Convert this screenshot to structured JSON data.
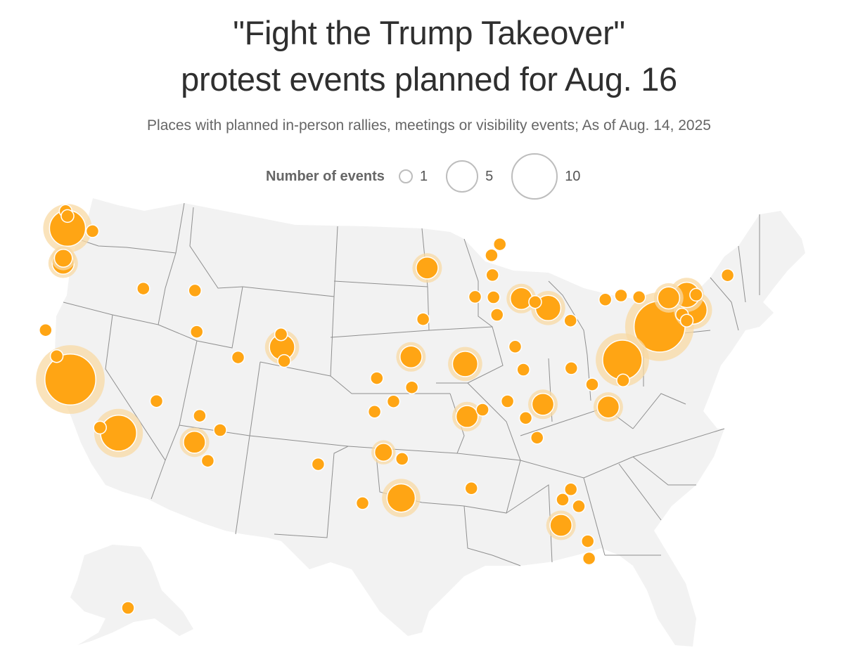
{
  "title_line1": "\"Fight the Trump Takeover\"",
  "title_line2": "protest events planned for Aug. 16",
  "subtitle": "Places with planned in-person rallies, meetings or visibility events; As of Aug. 14, 2025",
  "legend": {
    "title": "Number of events",
    "items": [
      {
        "label": "1",
        "value": 1
      },
      {
        "label": "5",
        "value": 5
      },
      {
        "label": "10",
        "value": 10
      }
    ]
  },
  "colors": {
    "land": "#f2f2f2",
    "borders": "#8f8f8f",
    "marker": "#ffa514",
    "halo": "#f8d9a4",
    "marker_outline": "#ffffff"
  },
  "regions": [
    "contiguous-us",
    "alaska"
  ],
  "points": [
    {
      "city": "Seattle",
      "lon": -122.33,
      "lat": 47.61,
      "events": 10
    },
    {
      "city": "Bellingham",
      "lon": -122.48,
      "lat": 48.75,
      "events": 1
    },
    {
      "city": "Mount Vernon",
      "lon": -122.33,
      "lat": 48.42,
      "events": 1
    },
    {
      "city": "Wenatchee",
      "lon": -120.31,
      "lat": 47.42,
      "events": 1
    },
    {
      "city": "Vancouver WA",
      "lon": -122.66,
      "lat": 45.63,
      "events": 2
    },
    {
      "city": "Portland",
      "lon": -122.68,
      "lat": 45.3,
      "events": 3
    },
    {
      "city": "Arcata",
      "lon": -124.1,
      "lat": 40.87,
      "events": 1
    },
    {
      "city": "Ukiah",
      "lon": -123.2,
      "lat": 39.15,
      "events": 1
    },
    {
      "city": "San Francisco Bay Area",
      "lon": -122.1,
      "lat": 37.6,
      "events": 20
    },
    {
      "city": "Santa Barbara",
      "lon": -119.7,
      "lat": 34.42,
      "events": 1
    },
    {
      "city": "Los Angeles",
      "lon": -118.2,
      "lat": 34.05,
      "events": 10
    },
    {
      "city": "Las Vegas",
      "lon": -115.14,
      "lat": 36.17,
      "events": 1
    },
    {
      "city": "Boise",
      "lon": -116.2,
      "lat": 43.62,
      "events": 1
    },
    {
      "city": "Idaho Falls",
      "lon": -112.03,
      "lat": 43.49,
      "events": 1
    },
    {
      "city": "Salt Lake City",
      "lon": -111.89,
      "lat": 40.76,
      "events": 1
    },
    {
      "city": "Fort Collins",
      "lon": -105.08,
      "lat": 40.59,
      "events": 1
    },
    {
      "city": "Denver",
      "lon": -104.99,
      "lat": 39.74,
      "events": 4
    },
    {
      "city": "Colorado Springs",
      "lon": -104.82,
      "lat": 38.83,
      "events": 1
    },
    {
      "city": "Grand Junction",
      "lon": -108.55,
      "lat": 39.06,
      "events": 1
    },
    {
      "city": "Flagstaff",
      "lon": -111.65,
      "lat": 35.2,
      "events": 1
    },
    {
      "city": "Phoenix",
      "lon": -112.07,
      "lat": 33.45,
      "events": 3
    },
    {
      "city": "Show Low",
      "lon": -110.0,
      "lat": 34.25,
      "events": 1
    },
    {
      "city": "Tucson",
      "lon": -111.0,
      "lat": 32.22,
      "events": 1
    },
    {
      "city": "Wichita",
      "lon": -97.34,
      "lat": 37.69,
      "events": 1
    },
    {
      "city": "Tulsa",
      "lon": -95.99,
      "lat": 36.15,
      "events": 1
    },
    {
      "city": "Oklahoma City",
      "lon": -97.52,
      "lat": 35.47,
      "events": 1
    },
    {
      "city": "Joplin",
      "lon": -94.51,
      "lat": 37.08,
      "events": 1
    },
    {
      "city": "Dallas",
      "lon": -96.8,
      "lat": 32.78,
      "events": 2
    },
    {
      "city": "Tyler",
      "lon": -95.3,
      "lat": 32.35,
      "events": 1
    },
    {
      "city": "Midland",
      "lon": -102.08,
      "lat": 31.99,
      "events": 1
    },
    {
      "city": "San Antonio",
      "lon": -98.49,
      "lat": 29.42,
      "events": 1
    },
    {
      "city": "Houston",
      "lon": -95.37,
      "lat": 29.76,
      "events": 5
    },
    {
      "city": "Minneapolis",
      "lon": -93.27,
      "lat": 44.98,
      "events": 3
    },
    {
      "city": "Des Moines",
      "lon": -93.6,
      "lat": 41.59,
      "events": 1
    },
    {
      "city": "Kansas City",
      "lon": -94.58,
      "lat": 39.1,
      "events": 3
    },
    {
      "city": "St. Louis",
      "lon": -90.2,
      "lat": 38.63,
      "events": 4
    },
    {
      "city": "Memphis",
      "lon": -90.05,
      "lat": 35.15,
      "events": 3
    },
    {
      "city": "Jackson TN",
      "lon": -88.8,
      "lat": 35.6,
      "events": 1
    },
    {
      "city": "New Orleans",
      "lon": -89.7,
      "lat": 30.4,
      "events": 1
    },
    {
      "city": "Marquette",
      "lon": -87.4,
      "lat": 46.55,
      "events": 1
    },
    {
      "city": "Iron Mountain",
      "lon": -88.07,
      "lat": 45.82,
      "events": 1
    },
    {
      "city": "Green Bay",
      "lon": -88.0,
      "lat": 44.51,
      "events": 1
    },
    {
      "city": "Milwaukee",
      "lon": -87.91,
      "lat": 43.04,
      "events": 1
    },
    {
      "city": "Madison",
      "lon": -89.4,
      "lat": 43.07,
      "events": 1
    },
    {
      "city": "Chicago",
      "lon": -87.63,
      "lat": 41.88,
      "events": 1
    },
    {
      "city": "Grand Rapids",
      "lon": -85.67,
      "lat": 42.96,
      "events": 3
    },
    {
      "city": "Lansing",
      "lon": -84.55,
      "lat": 42.73,
      "events": 1
    },
    {
      "city": "Detroit",
      "lon": -83.5,
      "lat": 42.33,
      "events": 4
    },
    {
      "city": "Indianapolis",
      "lon": -86.16,
      "lat": 39.77,
      "events": 1
    },
    {
      "city": "Cleveland",
      "lon": -81.69,
      "lat": 41.5,
      "events": 1
    },
    {
      "city": "Louisville",
      "lon": -85.5,
      "lat": 38.25,
      "events": 1
    },
    {
      "city": "Nashville",
      "lon": -86.78,
      "lat": 36.16,
      "events": 1
    },
    {
      "city": "Knoxville",
      "lon": -83.92,
      "lat": 35.96,
      "events": 3
    },
    {
      "city": "Charleston WV",
      "lon": -81.63,
      "lat": 38.35,
      "events": 1
    },
    {
      "city": "Roanoke",
      "lon": -79.94,
      "lat": 37.27,
      "events": 1
    },
    {
      "city": "Raleigh",
      "lon": -78.64,
      "lat": 35.78,
      "events": 3
    },
    {
      "city": "Chattanooga",
      "lon": -85.31,
      "lat": 35.05,
      "events": 1
    },
    {
      "city": "Atlanta",
      "lon": -84.39,
      "lat": 33.75,
      "events": 1
    },
    {
      "city": "Jacksonville",
      "lon": -81.66,
      "lat": 30.33,
      "events": 1
    },
    {
      "city": "Gainesville",
      "lon": -82.33,
      "lat": 29.65,
      "events": 1
    },
    {
      "city": "Daytona Beach",
      "lon": -81.02,
      "lat": 29.21,
      "events": 1
    },
    {
      "city": "Tampa",
      "lon": -82.46,
      "lat": 27.95,
      "events": 3
    },
    {
      "city": "West Palm Beach",
      "lon": -80.3,
      "lat": 26.9,
      "events": 1
    },
    {
      "city": "Miami",
      "lon": -80.19,
      "lat": 25.76,
      "events": 1
    },
    {
      "city": "Buffalo",
      "lon": -78.88,
      "lat": 42.89,
      "events": 1
    },
    {
      "city": "Rochester",
      "lon": -77.61,
      "lat": 43.16,
      "events": 1
    },
    {
      "city": "Syracuse",
      "lon": -76.15,
      "lat": 43.05,
      "events": 1
    },
    {
      "city": "Albany",
      "lon": -73.76,
      "lat": 43.0,
      "events": 3
    },
    {
      "city": "Bennington",
      "lon": -72.3,
      "lat": 43.2,
      "events": 4
    },
    {
      "city": "Concord",
      "lon": -71.54,
      "lat": 43.21,
      "events": 1
    },
    {
      "city": "Boston",
      "lon": -71.8,
      "lat": 42.2,
      "events": 5
    },
    {
      "city": "Hartford",
      "lon": -72.68,
      "lat": 41.9,
      "events": 1
    },
    {
      "city": "New Haven",
      "lon": -72.3,
      "lat": 41.5,
      "events": 1
    },
    {
      "city": "New York",
      "lon": -74.5,
      "lat": 41.1,
      "events": 20
    },
    {
      "city": "Washington DC",
      "lon": -77.5,
      "lat": 38.9,
      "events": 12
    },
    {
      "city": "Richmond",
      "lon": -77.44,
      "lat": 37.54,
      "events": 1
    },
    {
      "city": "Portland ME",
      "lon": -69.0,
      "lat": 44.5,
      "events": 1
    },
    {
      "city": "Anchorage",
      "lon": -149.9,
      "lat": 61.22,
      "events": 1
    }
  ]
}
